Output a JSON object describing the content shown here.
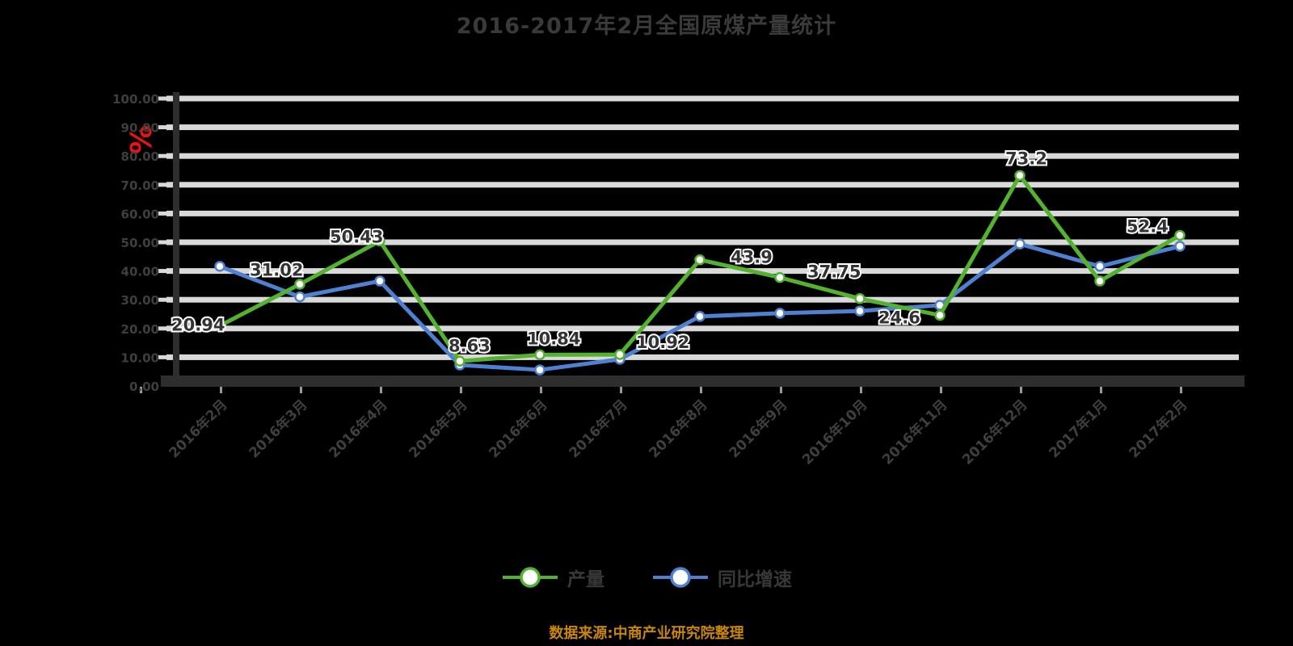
{
  "title": "2016-2017年2月全国原煤产量统计",
  "y_axis": {
    "title": "%",
    "title_color": "#ee1111",
    "tick_labels": [
      "0.00",
      "10.00",
      "20.00",
      "30.00",
      "40.00",
      "50.00",
      "60.00",
      "70.00",
      "80.00",
      "90.00",
      "100.00"
    ],
    "min": 0,
    "max": 100,
    "step": 10
  },
  "caption": {
    "text": "数据来源:中商产业研究院整理",
    "color": "#c8860a"
  },
  "colors": {
    "background": "#000000",
    "gridline": "#d9d9d9",
    "axis": "#2e2e2e",
    "tick_text": "#3f3f3f",
    "data_label": "#333333"
  },
  "chart_data": {
    "type": "line",
    "title": "2016-2017年2月全国原煤产量统计",
    "ylabel": "%",
    "ylim": [
      0,
      100
    ],
    "grid": true,
    "legend_position": "bottom",
    "categories": [
      "2016年2月",
      "2016年3月",
      "2016年4月",
      "2016年5月",
      "2016年6月",
      "2016年7月",
      "2016年8月",
      "2016年9月",
      "2016年10月",
      "2016年11月",
      "2016年12月",
      "2017年1月",
      "2017年2月"
    ],
    "series": [
      {
        "name": "同比增速",
        "color": "#4f81d2",
        "values": [
          41.6,
          31.02,
          36.5,
          7.3,
          5.6,
          9.3,
          24.2,
          25.3,
          26.1,
          28.1,
          49.4,
          41.6,
          48.6
        ],
        "point_labels": [
          {
            "i": 1,
            "text": "31.02",
            "dx": -62,
            "dy": -26
          }
        ]
      },
      {
        "name": "产量",
        "color": "#54b32e",
        "values": [
          20.94,
          35.4,
          50.43,
          8.63,
          10.84,
          10.92,
          43.9,
          37.75,
          30.4,
          24.6,
          73.2,
          36.5,
          52.4
        ],
        "point_labels": [
          {
            "i": 0,
            "text": "20.94",
            "dx": -60,
            "dy": 6
          },
          {
            "i": 2,
            "text": "50.43",
            "dx": -62,
            "dy": 2
          },
          {
            "i": 3,
            "text": "8.63",
            "dx": -14,
            "dy": -12
          },
          {
            "i": 4,
            "text": "10.84",
            "dx": -16,
            "dy": -13
          },
          {
            "i": 5,
            "text": "10.92",
            "dx": 20,
            "dy": -8
          },
          {
            "i": 6,
            "text": "43.9",
            "dx": 38,
            "dy": 4
          },
          {
            "i": 7,
            "text": "37.75",
            "dx": 34,
            "dy": 0
          },
          {
            "i": 9,
            "text": "24.6",
            "dx": -76,
            "dy": 10
          },
          {
            "i": 10,
            "text": "73.2",
            "dx": -18,
            "dy": -14
          },
          {
            "i": 12,
            "text": "52.4",
            "dx": -66,
            "dy": -4
          }
        ]
      }
    ]
  }
}
